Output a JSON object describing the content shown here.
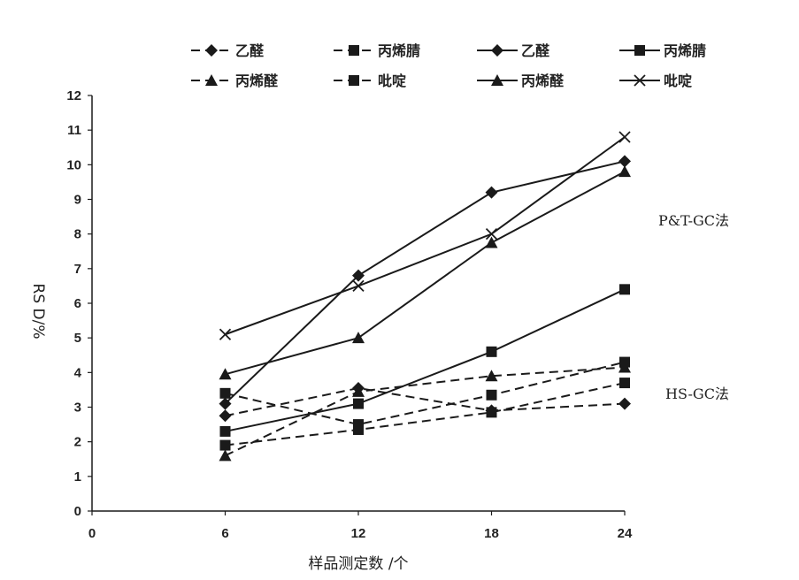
{
  "chart_data": {
    "type": "line",
    "xlabel": "样品测定数 /个",
    "ylabel": "RS D/%",
    "x": [
      6,
      12,
      18,
      24
    ],
    "xticks": [
      "0",
      "6",
      "12",
      "18",
      "24"
    ],
    "yticks": [
      "0",
      "1",
      "2",
      "3",
      "4",
      "5",
      "6",
      "7",
      "8",
      "9",
      "10",
      "11",
      "12"
    ],
    "xlim": [
      0,
      24
    ],
    "ylim": [
      0,
      12
    ],
    "grid": false,
    "legend": "top",
    "series": [
      {
        "name": "乙醛",
        "group": "HS-GC",
        "style": "dashed",
        "marker": "diamond",
        "values": [
          2.75,
          3.55,
          2.9,
          3.1
        ]
      },
      {
        "name": "丙烯腈",
        "group": "HS-GC",
        "style": "dashed",
        "marker": "square",
        "values": [
          1.9,
          2.35,
          2.85,
          3.7
        ]
      },
      {
        "name": "乙醛",
        "group": "P&T-GC",
        "style": "solid",
        "marker": "diamond",
        "values": [
          3.1,
          6.8,
          9.2,
          10.1
        ]
      },
      {
        "name": "丙烯腈",
        "group": "P&T-GC",
        "style": "solid",
        "marker": "square",
        "values": [
          2.3,
          3.1,
          4.6,
          6.4
        ]
      },
      {
        "name": "丙烯醛",
        "group": "HS-GC",
        "style": "dashed",
        "marker": "triangle",
        "values": [
          1.6,
          3.45,
          3.9,
          4.15
        ]
      },
      {
        "name": "吡啶",
        "group": "HS-GC",
        "style": "dashed",
        "marker": "square",
        "values": [
          3.4,
          2.5,
          3.35,
          4.3
        ]
      },
      {
        "name": "丙烯醛",
        "group": "P&T-GC",
        "style": "solid",
        "marker": "triangle",
        "values": [
          3.95,
          5.0,
          7.75,
          9.8
        ]
      },
      {
        "name": "吡啶",
        "group": "P&T-GC",
        "style": "solid",
        "marker": "cross",
        "values": [
          5.1,
          6.5,
          8.0,
          10.8
        ]
      }
    ],
    "annotations": [
      {
        "text": "P&T-GC法",
        "at_y": 8.4
      },
      {
        "text": "HS-GC法",
        "at_y": 3.4
      }
    ],
    "colors": {
      "line": "#1a1a1a"
    }
  }
}
